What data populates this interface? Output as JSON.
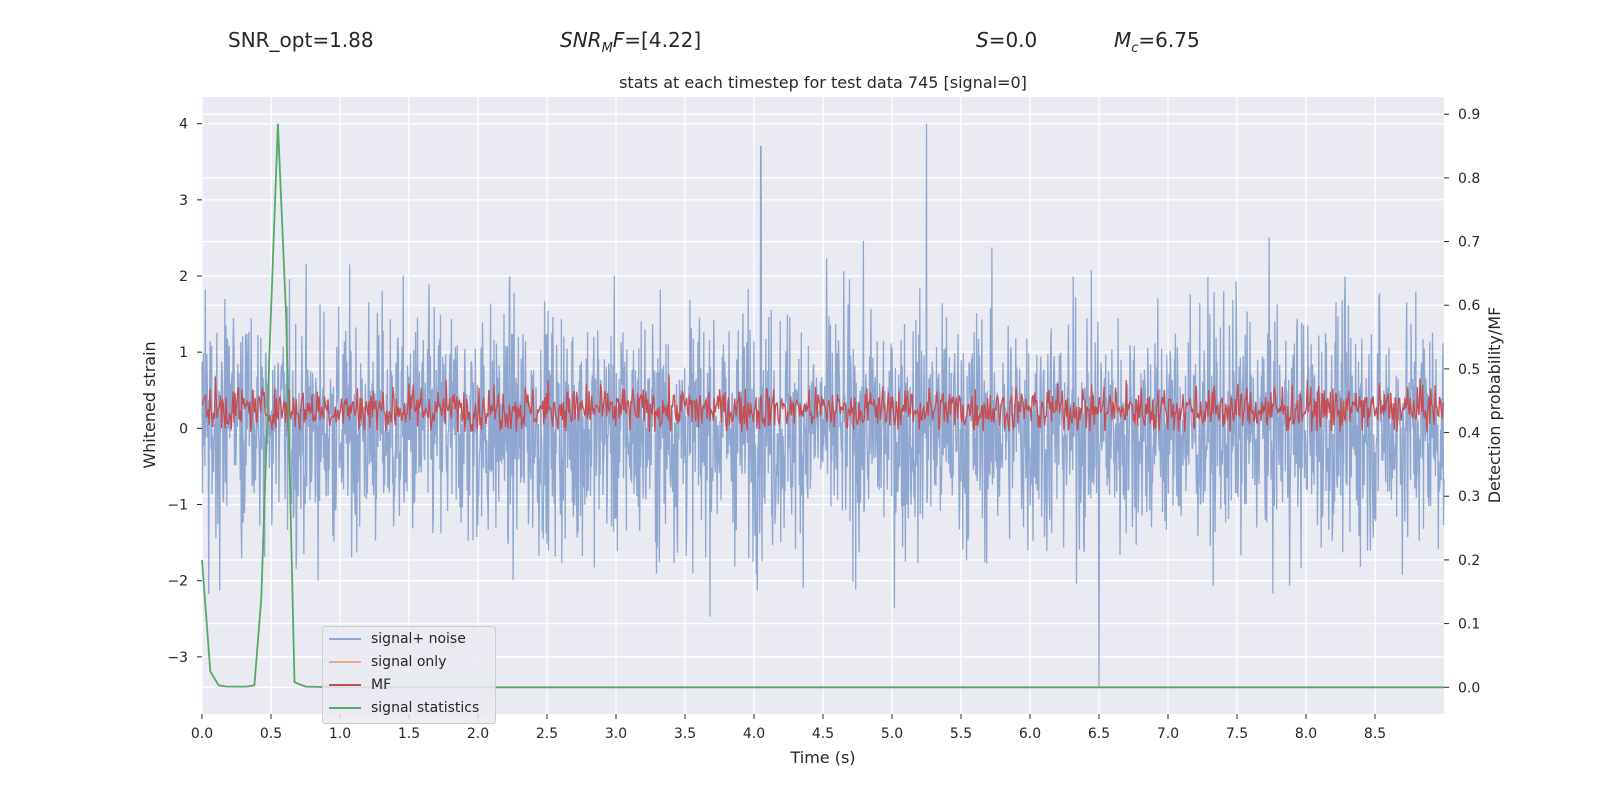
{
  "header": {
    "snr_opt": "SNR_opt=1.88",
    "snr_mf_prefix": "SNR",
    "snr_mf_sub": "M",
    "snr_mf_mid": "F",
    "snr_mf_value": "=[4.22]",
    "s_label": "S",
    "s_value": "=0.0",
    "mc_label": "M",
    "mc_sub": "c",
    "mc_value": "=6.75"
  },
  "chart_data": {
    "type": "line",
    "title": "stats at each timestep for test data 745 [signal=0]",
    "xlabel": "Time (s)",
    "ylabel": "Whitened strain",
    "y2label": "Detection probability/MF",
    "xlim": [
      0.0,
      9.0
    ],
    "ylim": [
      -3.75,
      4.35
    ],
    "y2lim": [
      -0.042,
      0.927
    ],
    "xticks": [
      "0.0",
      "0.5",
      "1.0",
      "1.5",
      "2.0",
      "2.5",
      "3.0",
      "3.5",
      "4.0",
      "4.5",
      "5.0",
      "5.5",
      "6.0",
      "6.5",
      "7.0",
      "7.5",
      "8.0",
      "8.5"
    ],
    "yticks": [
      "4",
      "3",
      "2",
      "1",
      "0",
      "−1",
      "−2",
      "−3"
    ],
    "y2ticks": [
      "0.9",
      "0.8",
      "0.7",
      "0.6",
      "0.5",
      "0.4",
      "0.3",
      "0.2",
      "0.1",
      "0.0"
    ],
    "grid": true,
    "legend_position": "lower-left",
    "series": [
      {
        "name": "signal+ noise",
        "color": "#8fa7d0",
        "axis": "left",
        "note": "dense white-noise trace, typical range ±1.6, peaks to 4.0 near t=5.25 and -3.4 near t=6.5"
      },
      {
        "name": "signal only",
        "color": "#e8a98c",
        "axis": "left",
        "values": []
      },
      {
        "name": "MF",
        "color": "#c44e52",
        "axis": "right",
        "note": "noisy trace between 0.40 and 0.51 on right axis"
      },
      {
        "name": "signal statistics",
        "color": "#55a868",
        "axis": "right",
        "x": [
          0.0,
          0.06,
          0.12,
          0.18,
          0.25,
          0.32,
          0.38,
          0.43,
          0.49,
          0.55,
          0.61,
          0.67,
          0.75,
          1.0,
          2.0,
          3.0,
          4.0,
          5.0,
          6.0,
          7.0,
          8.0,
          9.0
        ],
        "values": [
          0.2,
          0.025,
          0.003,
          0.001,
          0.001,
          0.001,
          0.003,
          0.14,
          0.53,
          0.885,
          0.58,
          0.008,
          0.001,
          0.0,
          0.0,
          0.0,
          0.0,
          0.0,
          0.0,
          0.0,
          0.0,
          0.0
        ]
      }
    ]
  }
}
